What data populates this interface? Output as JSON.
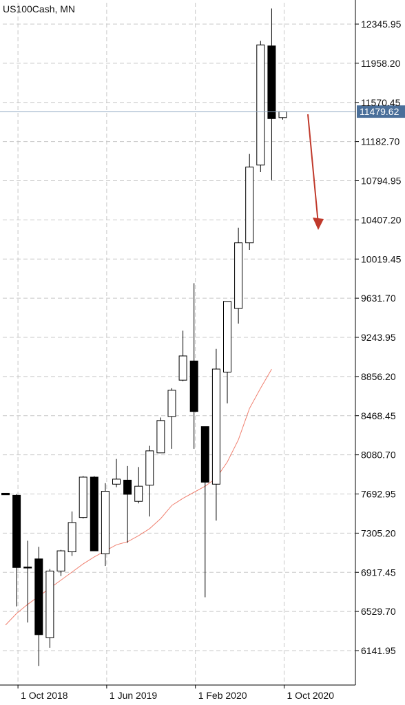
{
  "chart_data": {
    "type": "candlestick",
    "title": "US100Cash, MN",
    "current_price_label": "11479.62",
    "current_price": 11479.62,
    "ylim": [
      5880,
      12600
    ],
    "y_ticks": [
      {
        "value": 12345.95,
        "label": "12345.95"
      },
      {
        "value": 11958.2,
        "label": "11958.20"
      },
      {
        "value": 11570.45,
        "label": "11570.45"
      },
      {
        "value": 11182.7,
        "label": "11182.70"
      },
      {
        "value": 10794.95,
        "label": "10794.95"
      },
      {
        "value": 10407.2,
        "label": "10407.20"
      },
      {
        "value": 10019.45,
        "label": "10019.45"
      },
      {
        "value": 9631.7,
        "label": "9631.70"
      },
      {
        "value": 9243.95,
        "label": "9243.95"
      },
      {
        "value": 8856.2,
        "label": "8856.20"
      },
      {
        "value": 8468.45,
        "label": "8468.45"
      },
      {
        "value": 8080.7,
        "label": "8080.70"
      },
      {
        "value": 7692.95,
        "label": "7692.95"
      },
      {
        "value": 7305.2,
        "label": "7305.20"
      },
      {
        "value": 6917.45,
        "label": "6917.45"
      },
      {
        "value": 6529.7,
        "label": "6529.70"
      },
      {
        "value": 6141.95,
        "label": "6141.95"
      }
    ],
    "x_ticks": [
      {
        "index": 1,
        "label": "1 Oct 2018"
      },
      {
        "index": 9,
        "label": "1 Jun 2019"
      },
      {
        "index": 17,
        "label": "1 Feb 2020"
      },
      {
        "index": 25,
        "label": "1 Oct 2020"
      }
    ],
    "candles": [
      {
        "o": 7700,
        "h": 7700,
        "l": 7685,
        "c": 7685
      },
      {
        "o": 7680,
        "h": 7690,
        "l": 6580,
        "c": 6965
      },
      {
        "o": 6970,
        "h": 7230,
        "l": 6420,
        "c": 6965
      },
      {
        "o": 7050,
        "h": 7170,
        "l": 5990,
        "c": 6300
      },
      {
        "o": 6270,
        "h": 6950,
        "l": 6170,
        "c": 6930
      },
      {
        "o": 6930,
        "h": 7140,
        "l": 6880,
        "c": 7130
      },
      {
        "o": 7120,
        "h": 7520,
        "l": 7080,
        "c": 7410
      },
      {
        "o": 7460,
        "h": 7870,
        "l": 7450,
        "c": 7860
      },
      {
        "o": 7860,
        "h": 7870,
        "l": 7130,
        "c": 7130
      },
      {
        "o": 7100,
        "h": 7800,
        "l": 6980,
        "c": 7720
      },
      {
        "o": 7790,
        "h": 8040,
        "l": 7760,
        "c": 7840
      },
      {
        "o": 7830,
        "h": 7970,
        "l": 7210,
        "c": 7690
      },
      {
        "o": 7620,
        "h": 7960,
        "l": 7600,
        "c": 7770
      },
      {
        "o": 7780,
        "h": 8170,
        "l": 7470,
        "c": 8120
      },
      {
        "o": 8100,
        "h": 8450,
        "l": 8100,
        "c": 8420
      },
      {
        "o": 8460,
        "h": 8740,
        "l": 8140,
        "c": 8720
      },
      {
        "o": 8820,
        "h": 9310,
        "l": 8810,
        "c": 9060
      },
      {
        "o": 9010,
        "h": 9780,
        "l": 8140,
        "c": 8510
      },
      {
        "o": 8360,
        "h": 8360,
        "l": 6670,
        "c": 7810
      },
      {
        "o": 7790,
        "h": 9130,
        "l": 7430,
        "c": 8930
      },
      {
        "o": 8900,
        "h": 9600,
        "l": 8590,
        "c": 9600
      },
      {
        "o": 9530,
        "h": 10330,
        "l": 9380,
        "c": 10180
      },
      {
        "o": 10180,
        "h": 11060,
        "l": 10110,
        "c": 10930
      },
      {
        "o": 10950,
        "h": 12180,
        "l": 10880,
        "c": 12140
      },
      {
        "o": 12130,
        "h": 12500,
        "l": 10800,
        "c": 11410
      },
      {
        "o": 11420,
        "h": 11480,
        "l": 11400,
        "c": 11480
      }
    ],
    "moving_average": {
      "color": "#f08070",
      "values": [
        6395,
        6510,
        6600,
        6680,
        6760,
        6840,
        6920,
        7000,
        7070,
        7130,
        7190,
        7220,
        7280,
        7350,
        7450,
        7580,
        7650,
        7710,
        7770,
        7850,
        8010,
        8230,
        8540,
        8740,
        8930
      ]
    },
    "colors": {
      "bear_body": "#000000",
      "bull_body": "#ffffff",
      "wick": "#000000",
      "grid": "#c8c8c8",
      "price_line": "#8fa8c0",
      "price_label_bg": "#4a6f9a",
      "price_label_text": "#ffffff",
      "arrow": "#c0392b"
    }
  }
}
